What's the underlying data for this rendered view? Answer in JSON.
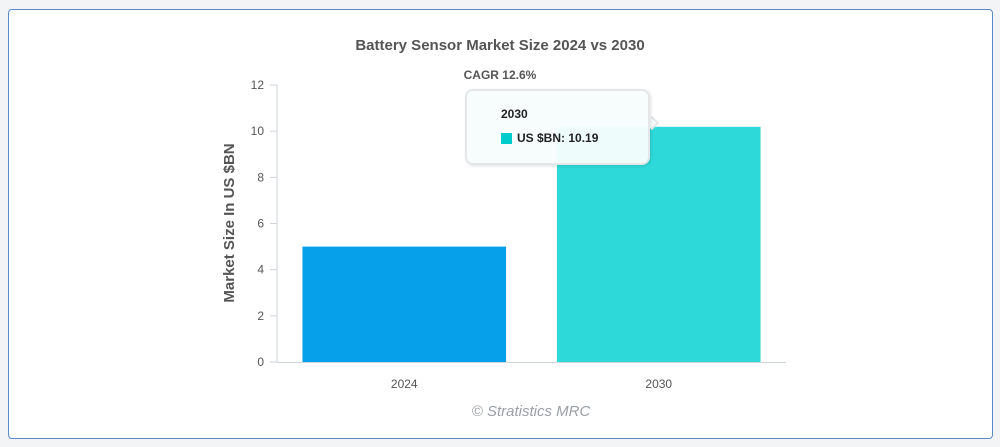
{
  "chart_data": {
    "type": "bar",
    "title": "Battery Sensor Market Size 2024 vs 2030",
    "subtitle": "CAGR 12.6%",
    "ylabel": "Market Size In US $BN",
    "xlabel": "",
    "categories": [
      "2024",
      "2030"
    ],
    "values": [
      5.0,
      10.19
    ],
    "colors": [
      "#069fe9",
      "#2ed9d9"
    ],
    "ylim": [
      0,
      12
    ],
    "yticks": [
      0,
      2,
      4,
      6,
      8,
      10,
      12
    ],
    "grid": false,
    "legend": "none",
    "credit": "© Stratistics MRC",
    "tooltip": {
      "header": "2030",
      "label": "US $BN: 10.19",
      "color": "#00cccc"
    }
  }
}
